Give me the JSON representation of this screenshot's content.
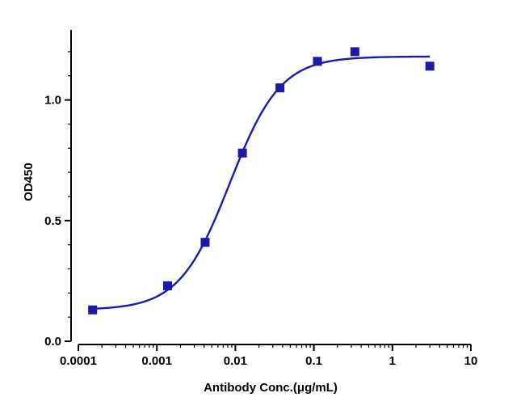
{
  "chart_data": {
    "type": "scatter",
    "title": "",
    "xlabel": "Antibody Conc.(μg/mL)",
    "ylabel": "OD450",
    "xscale": "log",
    "xlim": [
      0.0001,
      10
    ],
    "ylim": [
      0.0,
      1.25
    ],
    "x_ticks": [
      0.0001,
      0.001,
      0.01,
      0.1,
      1,
      10
    ],
    "x_tick_labels": [
      "0.0001",
      "0.001",
      "0.01",
      "0.1",
      "1",
      "10"
    ],
    "y_ticks": [
      0.0,
      0.5,
      1.0
    ],
    "y_tick_labels": [
      "0.0",
      "0.5",
      "1.0"
    ],
    "grid": false,
    "legend": "none",
    "color": "#1a1aa8",
    "series": [
      {
        "marker": "square",
        "x": [
          0.000152,
          0.00137,
          0.00412,
          0.0123,
          0.037,
          0.111,
          0.333,
          3.0
        ],
        "y": [
          0.13,
          0.23,
          0.41,
          0.78,
          1.05,
          1.16,
          1.2,
          1.14
        ]
      }
    ],
    "fit_curve": {
      "model": "4PL",
      "bottom": 0.13,
      "top": 1.18,
      "ec50": 0.0085,
      "hill": 1.35,
      "x_range": [
        0.000152,
        3.0
      ]
    }
  }
}
